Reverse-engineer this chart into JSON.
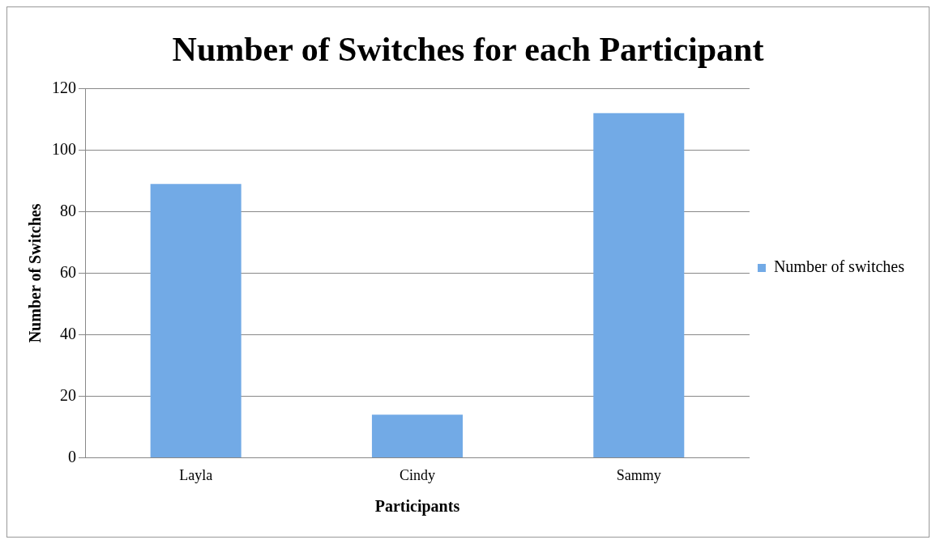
{
  "chart_data": {
    "type": "bar",
    "title": "Number of Switches for each Participant",
    "xlabel": "Participants",
    "ylabel": "Number of Switches",
    "categories": [
      "Layla",
      "Cindy",
      "Sammy"
    ],
    "series": [
      {
        "name": "Number of switches",
        "color": "#72aae6",
        "values": [
          89,
          14,
          112
        ]
      }
    ],
    "ylim": [
      0,
      120
    ],
    "yticks": [
      0,
      20,
      40,
      60,
      80,
      100,
      120
    ],
    "grid": "y",
    "legend": "right"
  }
}
